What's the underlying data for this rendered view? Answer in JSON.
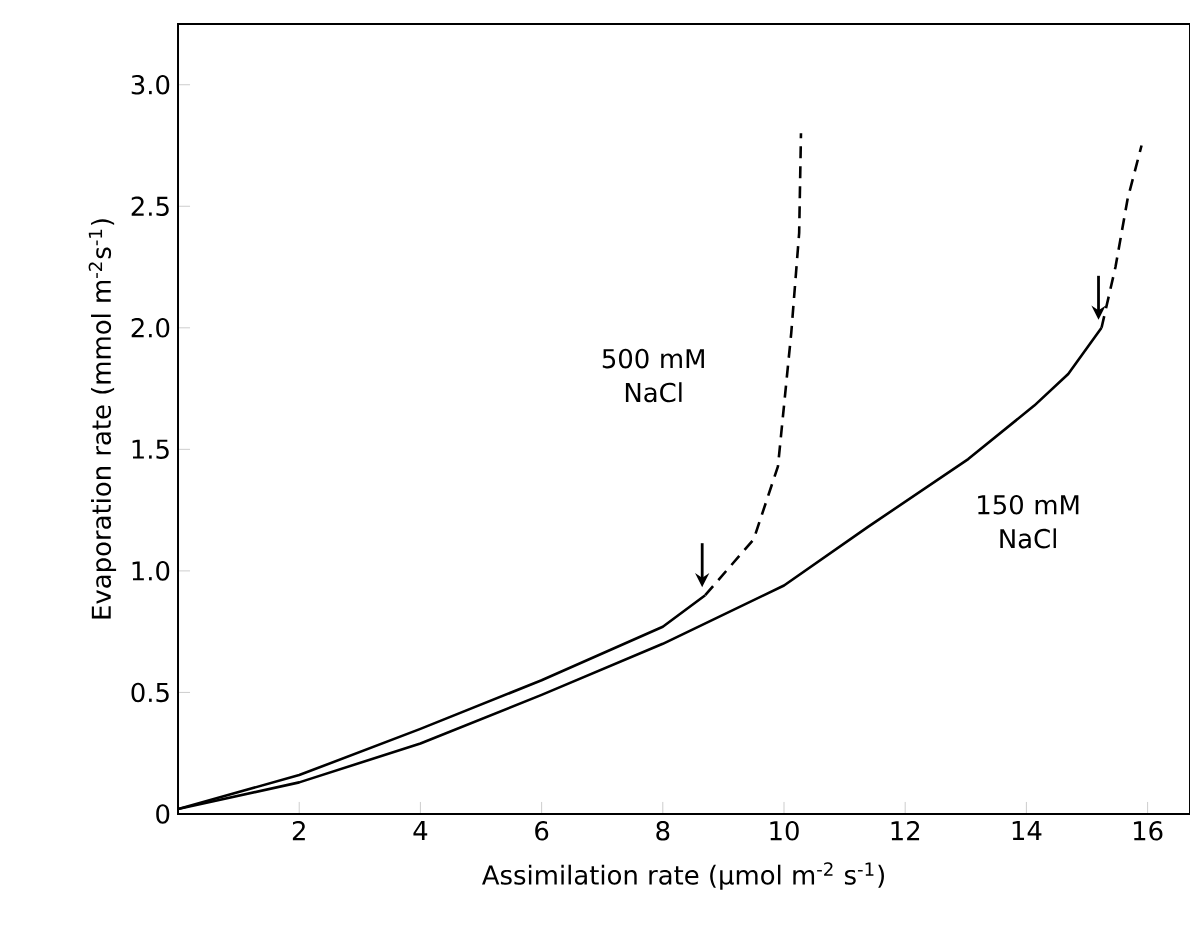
{
  "chart_data": {
    "type": "line",
    "xlabel": "Assimilation rate (μmol m$^{-2}$ s$^{-1}$)",
    "ylabel": "Evaporation rate (mmol m$^{-2}$s$^{-1}$)",
    "xlim": [
      0,
      16.7
    ],
    "ylim": [
      0,
      3.25
    ],
    "xticks": [
      2,
      4,
      6,
      8,
      10,
      12,
      14,
      16
    ],
    "yticks": [
      0,
      0.5,
      {
        "value": 1,
        "label": "1.0"
      },
      1.5,
      {
        "value": 2,
        "label": "2.0"
      },
      2.5,
      {
        "value": 3,
        "label": "3.0"
      }
    ],
    "marker": "none",
    "grid": false,
    "series": [
      {
        "color": "#000000",
        "line_style": "solid",
        "x": [
          0,
          2,
          4,
          6,
          8,
          8.7
        ],
        "values": [
          0.02,
          0.16,
          0.35,
          0.55,
          0.77,
          0.9
        ]
      },
      {
        "color": "#000000",
        "line_style": "dashed",
        "x": [
          8.7,
          9.5,
          9.9,
          10.12,
          10.25,
          10.28
        ],
        "values": [
          0.9,
          1.13,
          1.43,
          1.98,
          2.39,
          2.8
        ]
      },
      {
        "color": "#000000",
        "line_style": "solid",
        "x": [
          0,
          2,
          4,
          6,
          8,
          10,
          11.38,
          13.04,
          14.13,
          14.69,
          15.24
        ],
        "values": [
          0.02,
          0.13,
          0.29,
          0.49,
          0.7,
          0.94,
          1.18,
          1.46,
          1.68,
          1.81,
          2.0
        ]
      },
      {
        "color": "#000000",
        "line_style": "dashed",
        "x": [
          15.24,
          15.47,
          15.67,
          15.9
        ],
        "values": [
          2.0,
          2.25,
          2.53,
          2.75
        ]
      }
    ],
    "annotations": [
      "500 mM NaCl",
      "150 mM NaCl"
    ]
  }
}
